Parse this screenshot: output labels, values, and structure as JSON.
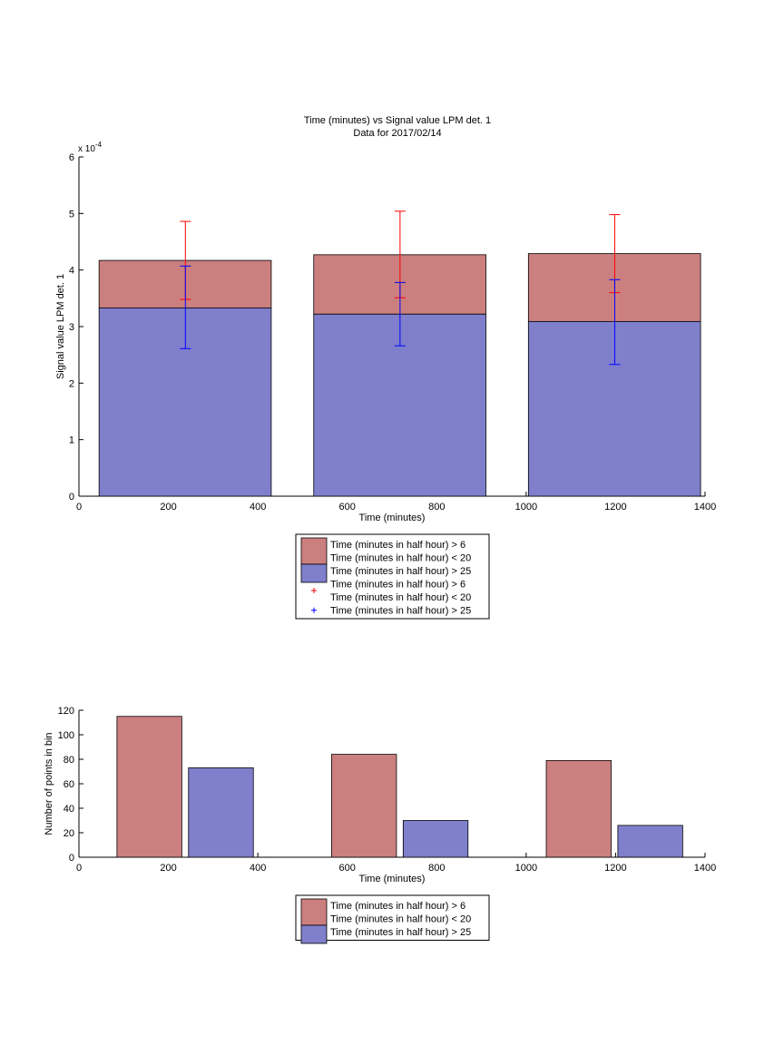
{
  "colors": {
    "red_fill": "#cc7f7f",
    "blue_fill": "#7f7fcc",
    "red_err": "#ff0000",
    "blue_err": "#0000ff",
    "axis": "#000000"
  },
  "chart_data": [
    {
      "type": "bar",
      "title": "Time (minutes) vs Signal value LPM det. 1",
      "subtitle": "Data for 2017/02/14",
      "xlabel": "Time (minutes)",
      "ylabel": "Signal value LPM det. 1",
      "exponent_label": "x 10",
      "exponent_power": "-4",
      "xlim": [
        0,
        1400
      ],
      "ylim": [
        0,
        6
      ],
      "scale": 0.0001,
      "xticks": [
        "0",
        "200",
        "400",
        "600",
        "800",
        "1000",
        "1200",
        "1400"
      ],
      "yticks": [
        "0",
        "1",
        "2",
        "3",
        "4",
        "5",
        "6"
      ],
      "bins": [
        {
          "x_from": 45,
          "x_to": 430
        },
        {
          "x_from": 525,
          "x_to": 910
        },
        {
          "x_from": 1005,
          "x_to": 1390
        }
      ],
      "series": [
        {
          "name": "Time (minutes in half hour) > 6 Time (minutes in half hour) < 20",
          "color": "red",
          "values": [
            4.17,
            4.27,
            4.29
          ]
        },
        {
          "name": "Time (minutes in half hour) > 25",
          "color": "blue",
          "values": [
            3.33,
            3.22,
            3.09
          ]
        }
      ],
      "errorbars": [
        {
          "name": "Time (minutes in half hour) > 6 Time (minutes in half hour) < 20",
          "color": "red",
          "x": [
            238,
            718,
            1198
          ],
          "lower": [
            3.48,
            3.51,
            3.6
          ],
          "upper": [
            4.86,
            5.04,
            4.98
          ]
        },
        {
          "name": "Time (minutes in half hour) > 25",
          "color": "blue",
          "x": [
            238,
            718,
            1198
          ],
          "lower": [
            2.61,
            2.66,
            2.33
          ],
          "upper": [
            4.07,
            3.78,
            3.83
          ]
        }
      ],
      "legend": {
        "placement": "below",
        "entries": [
          {
            "marker": "patch",
            "color": "red",
            "lines": [
              "Time (minutes in half hour) > 6",
              "Time (minutes in half hour) < 20"
            ]
          },
          {
            "marker": "patch",
            "color": "blue",
            "lines": [
              "Time (minutes in half hour) > 25"
            ]
          },
          {
            "marker": "plus",
            "color": "red",
            "lines": [
              "Time (minutes in half hour) > 6",
              "Time (minutes in half hour) < 20"
            ]
          },
          {
            "marker": "plus",
            "color": "blue",
            "lines": [
              "Time (minutes in half hour) > 25"
            ]
          }
        ]
      }
    },
    {
      "type": "bar",
      "title": "",
      "xlabel": "Time (minutes)",
      "ylabel": "Number of points in bin",
      "xlim": [
        0,
        1400
      ],
      "ylim": [
        0,
        120
      ],
      "xticks": [
        "0",
        "200",
        "400",
        "600",
        "800",
        "1000",
        "1200",
        "1400"
      ],
      "yticks": [
        "0",
        "20",
        "40",
        "60",
        "80",
        "100",
        "120"
      ],
      "bars": [
        {
          "series": "red",
          "x_from": 85,
          "x_to": 230,
          "value": 115
        },
        {
          "series": "blue",
          "x_from": 245,
          "x_to": 390,
          "value": 73
        },
        {
          "series": "red",
          "x_from": 565,
          "x_to": 710,
          "value": 84
        },
        {
          "series": "blue",
          "x_from": 725,
          "x_to": 870,
          "value": 30
        },
        {
          "series": "red",
          "x_from": 1045,
          "x_to": 1190,
          "value": 79
        },
        {
          "series": "blue",
          "x_from": 1205,
          "x_to": 1350,
          "value": 26
        }
      ],
      "legend": {
        "placement": "below",
        "entries": [
          {
            "marker": "patch",
            "color": "red",
            "lines": [
              "Time (minutes in half hour) > 6",
              "Time (minutes in half hour) < 20"
            ]
          },
          {
            "marker": "patch",
            "color": "blue",
            "lines": [
              "Time (minutes in half hour) > 25"
            ]
          }
        ]
      }
    }
  ]
}
